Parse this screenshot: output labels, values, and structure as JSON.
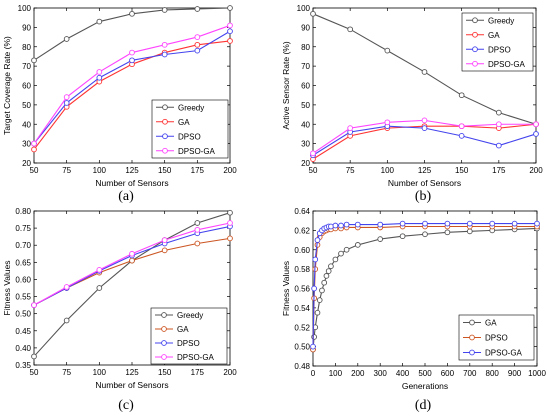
{
  "panels": [
    {
      "caption": "(a)",
      "chart_data": {
        "type": "line",
        "xlabel": "Number of Sensors",
        "ylabel": "Target Coverage Rate (%)",
        "xlim": [
          50,
          200
        ],
        "ylim": [
          20,
          100
        ],
        "xticks": [
          50,
          75,
          100,
          125,
          150,
          175,
          200
        ],
        "yticks": [
          20,
          30,
          40,
          50,
          60,
          70,
          80,
          90,
          100
        ],
        "x": [
          50,
          75,
          100,
          125,
          150,
          175,
          200
        ],
        "grid": false,
        "legend": "lower-right",
        "series": [
          {
            "name": "Greedy",
            "color": "#555555",
            "values": [
              73,
              84,
              93,
              97,
              99,
              99.5,
              100
            ]
          },
          {
            "name": "GA",
            "color": "#ff3333",
            "values": [
              27,
              49,
              62,
              71,
              77,
              81,
              83
            ]
          },
          {
            "name": "DPSO",
            "color": "#4444ee",
            "values": [
              30,
              51,
              64,
              73,
              76,
              78,
              88
            ]
          },
          {
            "name": "DPSO-GA",
            "color": "#ff44ff",
            "values": [
              30,
              54,
              67,
              77,
              81,
              85,
              91
            ]
          }
        ]
      }
    },
    {
      "caption": "(b)",
      "chart_data": {
        "type": "line",
        "xlabel": "Number of Sensors",
        "ylabel": "Active Sensor Rate (%)",
        "xlim": [
          50,
          200
        ],
        "ylim": [
          20,
          100
        ],
        "xticks": [
          50,
          75,
          100,
          125,
          150,
          175,
          200
        ],
        "yticks": [
          20,
          30,
          40,
          50,
          60,
          70,
          80,
          90,
          100
        ],
        "x": [
          50,
          75,
          100,
          125,
          150,
          175,
          200
        ],
        "grid": false,
        "legend": "top-right",
        "series": [
          {
            "name": "Greedy",
            "color": "#555555",
            "values": [
              97,
              89,
              78,
              67,
              55,
              46,
              40
            ]
          },
          {
            "name": "GA",
            "color": "#ff3333",
            "values": [
              22,
              34,
              38,
              39,
              39,
              38,
              40
            ]
          },
          {
            "name": "DPSO",
            "color": "#4444ee",
            "values": [
              24,
              36,
              39,
              38,
              34,
              29,
              35
            ]
          },
          {
            "name": "DPSO-GA",
            "color": "#ff44ff",
            "values": [
              25,
              38,
              41,
              42,
              39,
              40,
              40
            ]
          }
        ]
      }
    },
    {
      "caption": "(c)",
      "chart_data": {
        "type": "line",
        "xlabel": "Number of Sensors",
        "ylabel": "Fitness Values",
        "xlim": [
          50,
          200
        ],
        "ylim": [
          0.35,
          0.8
        ],
        "xticks": [
          50,
          75,
          100,
          125,
          150,
          175,
          200
        ],
        "yticks": [
          "0.35",
          "0.40",
          "0.45",
          "0.50",
          "0.55",
          "0.60",
          "0.65",
          "0.70",
          "0.75",
          "0.80"
        ],
        "x": [
          50,
          75,
          100,
          125,
          150,
          175,
          200
        ],
        "grid": false,
        "legend": "lower-right",
        "series": [
          {
            "name": "Greedy",
            "color": "#555555",
            "values": [
              0.375,
              0.48,
              0.575,
              0.655,
              0.715,
              0.765,
              0.795
            ]
          },
          {
            "name": "GA",
            "color": "#cc5522",
            "values": [
              0.525,
              0.575,
              0.62,
              0.655,
              0.685,
              0.705,
              0.72
            ]
          },
          {
            "name": "DPSO",
            "color": "#4444ee",
            "values": [
              0.525,
              0.575,
              0.625,
              0.67,
              0.705,
              0.735,
              0.755
            ]
          },
          {
            "name": "DPSO-GA",
            "color": "#ff44ff",
            "values": [
              0.525,
              0.578,
              0.628,
              0.675,
              0.715,
              0.745,
              0.765
            ]
          }
        ]
      }
    },
    {
      "caption": "(d)",
      "chart_data": {
        "type": "line",
        "xlabel": "Generations",
        "ylabel": "Fitness Values",
        "xlim": [
          0,
          1000
        ],
        "ylim": [
          0.48,
          0.64
        ],
        "xticks": [
          0,
          100,
          200,
          300,
          400,
          500,
          600,
          700,
          800,
          900,
          1000
        ],
        "yticks": [
          "0.48",
          "0.50",
          "0.52",
          "0.54",
          "0.56",
          "0.58",
          "0.60",
          "0.62",
          "0.64"
        ],
        "grid": false,
        "legend": "lower-right",
        "series": [
          {
            "name": "GA",
            "color": "#555555",
            "x": [
              0,
              5,
              10,
              20,
              30,
              40,
              50,
              60,
              70,
              80,
              100,
              125,
              150,
              200,
              250,
              300,
              400,
              500,
              600,
              700,
              800,
              900,
              1000
            ],
            "values": [
              0.497,
              0.51,
              0.52,
              0.535,
              0.548,
              0.558,
              0.566,
              0.573,
              0.578,
              0.583,
              0.59,
              0.596,
              0.6,
              0.605,
              0.608,
              0.611,
              0.614,
              0.616,
              0.618,
              0.619,
              0.62,
              0.621,
              0.622
            ]
          },
          {
            "name": "DPSO",
            "color": "#cc5522",
            "x": [
              0,
              5,
              10,
              20,
              30,
              40,
              50,
              60,
              70,
              80,
              100,
              125,
              150,
              200,
              250,
              300,
              400,
              500,
              600,
              700,
              800,
              900,
              1000
            ],
            "values": [
              0.497,
              0.55,
              0.58,
              0.605,
              0.613,
              0.617,
              0.619,
              0.62,
              0.621,
              0.621,
              0.622,
              0.622,
              0.623,
              0.623,
              0.623,
              0.623,
              0.624,
              0.624,
              0.624,
              0.624,
              0.624,
              0.624,
              0.624
            ]
          },
          {
            "name": "DPSO-GA",
            "color": "#4444ee",
            "x": [
              0,
              5,
              10,
              20,
              30,
              40,
              50,
              60,
              70,
              80,
              100,
              125,
              150,
              200,
              250,
              300,
              400,
              500,
              600,
              700,
              800,
              900,
              1000
            ],
            "values": [
              0.5,
              0.56,
              0.59,
              0.61,
              0.617,
              0.62,
              0.622,
              0.623,
              0.624,
              0.624,
              0.625,
              0.625,
              0.626,
              0.626,
              0.626,
              0.626,
              0.627,
              0.627,
              0.627,
              0.627,
              0.627,
              0.627,
              0.627
            ]
          }
        ]
      }
    }
  ]
}
